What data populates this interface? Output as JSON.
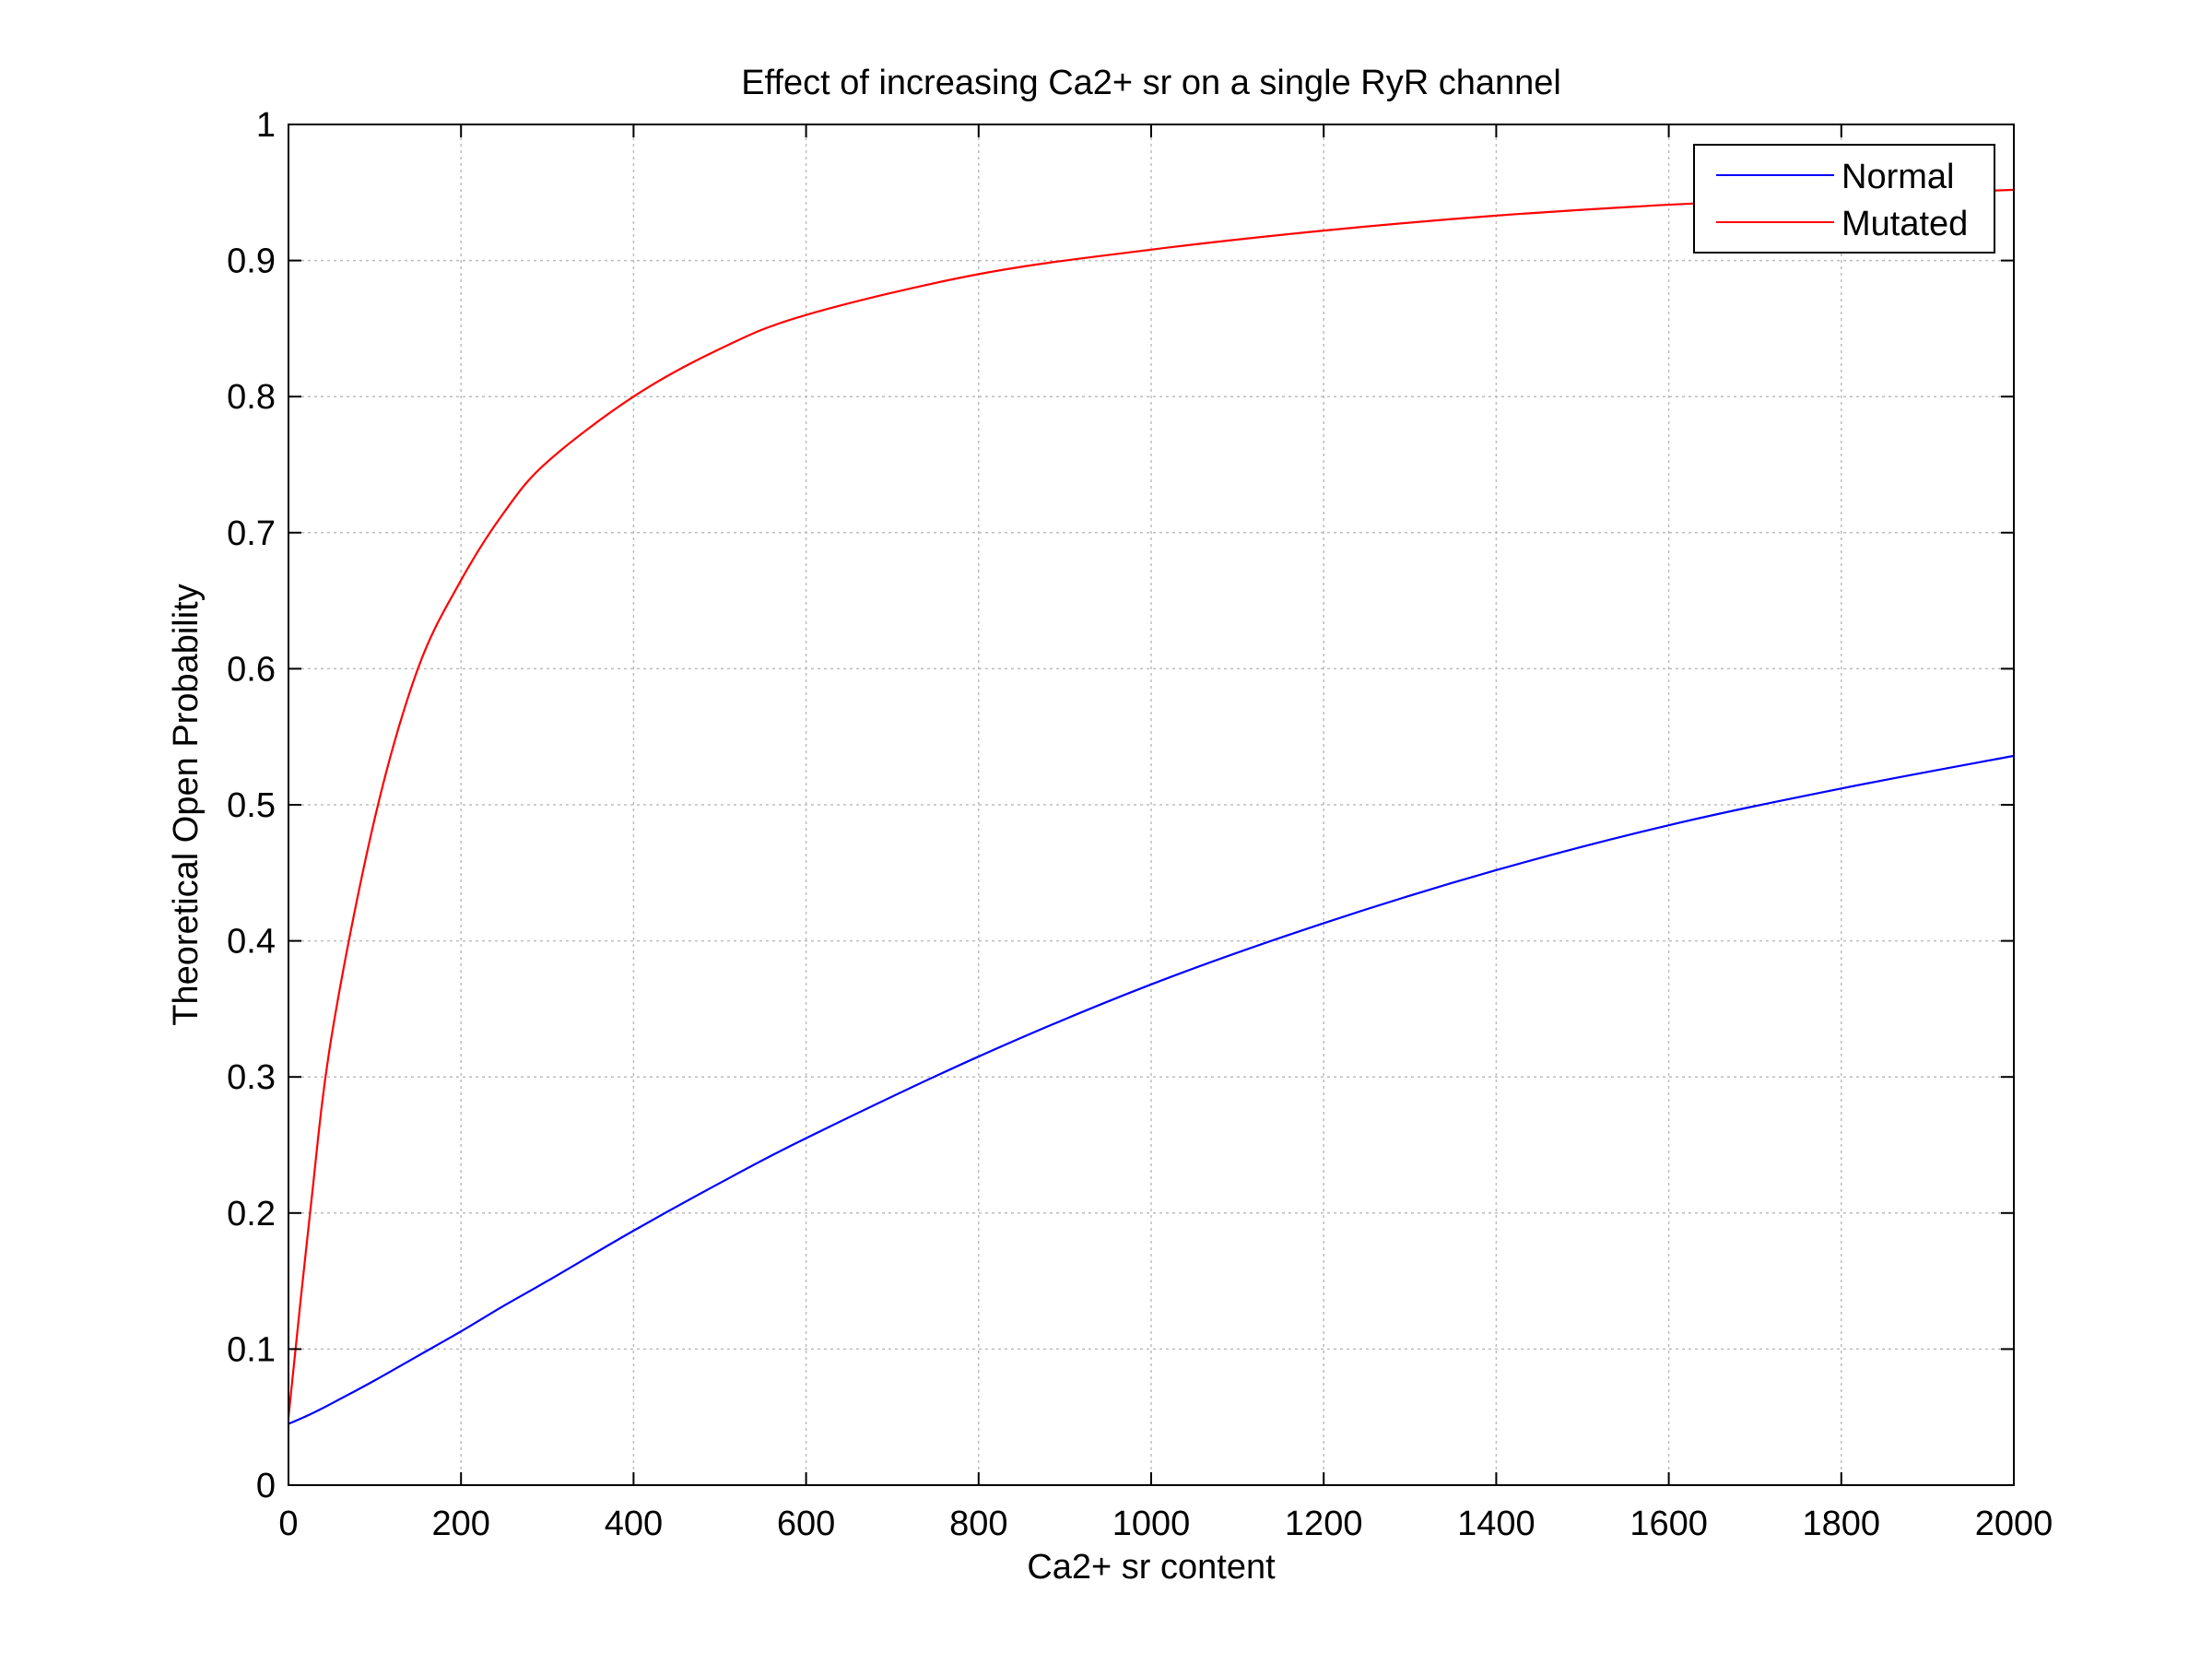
{
  "chart_data": {
    "type": "line",
    "title": "Effect of increasing Ca2+ sr on a single RyR channel",
    "xlabel": "Ca2+ sr content",
    "ylabel": "Theoretical Open Probability",
    "xlim": [
      0,
      2000
    ],
    "ylim": [
      0,
      1
    ],
    "x_ticks": [
      "0",
      "200",
      "400",
      "600",
      "800",
      "1000",
      "1200",
      "1400",
      "1600",
      "1800",
      "2000"
    ],
    "y_ticks": [
      "0",
      "0.1",
      "0.2",
      "0.3",
      "0.4",
      "0.5",
      "0.6",
      "0.7",
      "0.8",
      "0.9",
      "1"
    ],
    "grid": true,
    "legend_position": "top-right",
    "x": [
      0,
      25,
      50,
      100,
      150,
      200,
      250,
      300,
      400,
      500,
      600,
      800,
      1000,
      1200,
      1400,
      1600,
      1800,
      2000
    ],
    "series": [
      {
        "name": "Normal",
        "color": "#0000ff",
        "values": [
          0.045,
          0.052,
          0.06,
          0.077,
          0.095,
          0.113,
          0.132,
          0.15,
          0.187,
          0.222,
          0.255,
          0.315,
          0.368,
          0.413,
          0.452,
          0.485,
          0.512,
          0.536
        ]
      },
      {
        "name": "Mutated",
        "color": "#ff0000",
        "values": [
          0.05,
          0.2,
          0.33,
          0.49,
          0.6,
          0.665,
          0.715,
          0.752,
          0.8,
          0.835,
          0.86,
          0.89,
          0.908,
          0.922,
          0.933,
          0.941,
          0.947,
          0.952
        ]
      }
    ]
  }
}
